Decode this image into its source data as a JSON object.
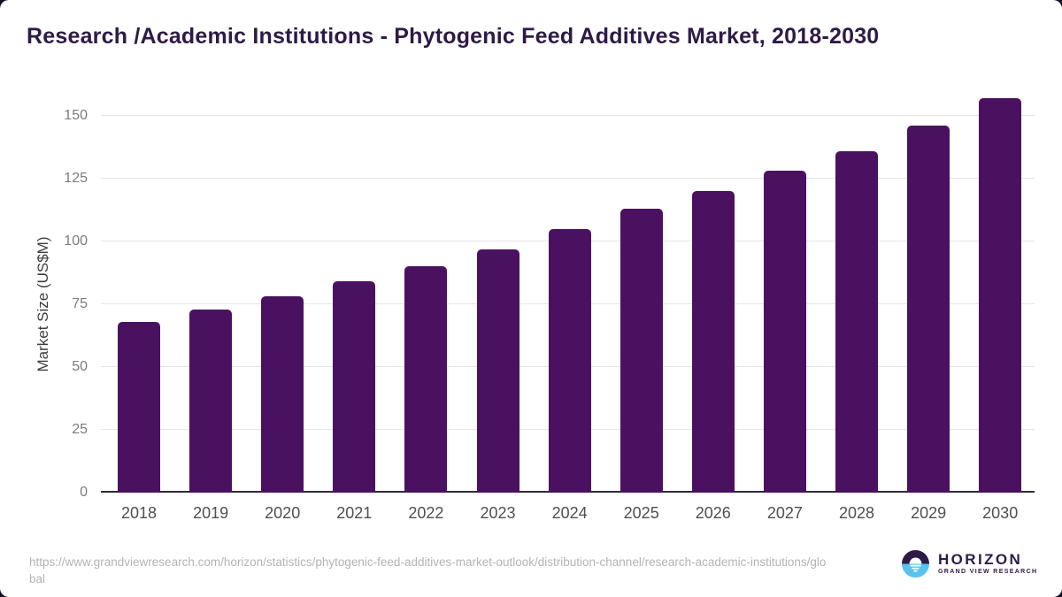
{
  "chart_data": {
    "type": "bar",
    "title": "Research /Academic Institutions - Phytogenic Feed Additives Market, 2018-2030",
    "xlabel": "",
    "ylabel": "Market Size (US$M)",
    "categories": [
      "2018",
      "2019",
      "2020",
      "2021",
      "2022",
      "2023",
      "2024",
      "2025",
      "2026",
      "2027",
      "2028",
      "2029",
      "2030"
    ],
    "values": [
      68,
      73,
      78,
      84,
      90,
      97,
      105,
      113,
      120,
      128,
      136,
      146,
      157
    ],
    "ylim": [
      0,
      150
    ],
    "yticks": [
      0,
      25,
      50,
      75,
      100,
      125,
      150
    ],
    "grid": "horizontal-only",
    "legend_position": "none",
    "bar_color": "#4a1160"
  },
  "footer": {
    "source_url": "https://www.grandviewresearch.com/horizon/statistics/phytogenic-feed-additives-market-outlook/distribution-channel/research-academic-institutions/global",
    "brand_name": "HORIZON",
    "brand_subtitle": "GRAND VIEW RESEARCH"
  },
  "colors": {
    "bar": "#4a1160",
    "title_text": "#2e1a47",
    "brand_purple": "#2e1a47",
    "brand_blue": "#5bc2f0",
    "gridline": "#e6e6e6",
    "axis_line": "#2f2b3a",
    "tick_text": "#7b7b7b",
    "url_text": "#b4b4b4",
    "frame_corner": "#14102a"
  }
}
